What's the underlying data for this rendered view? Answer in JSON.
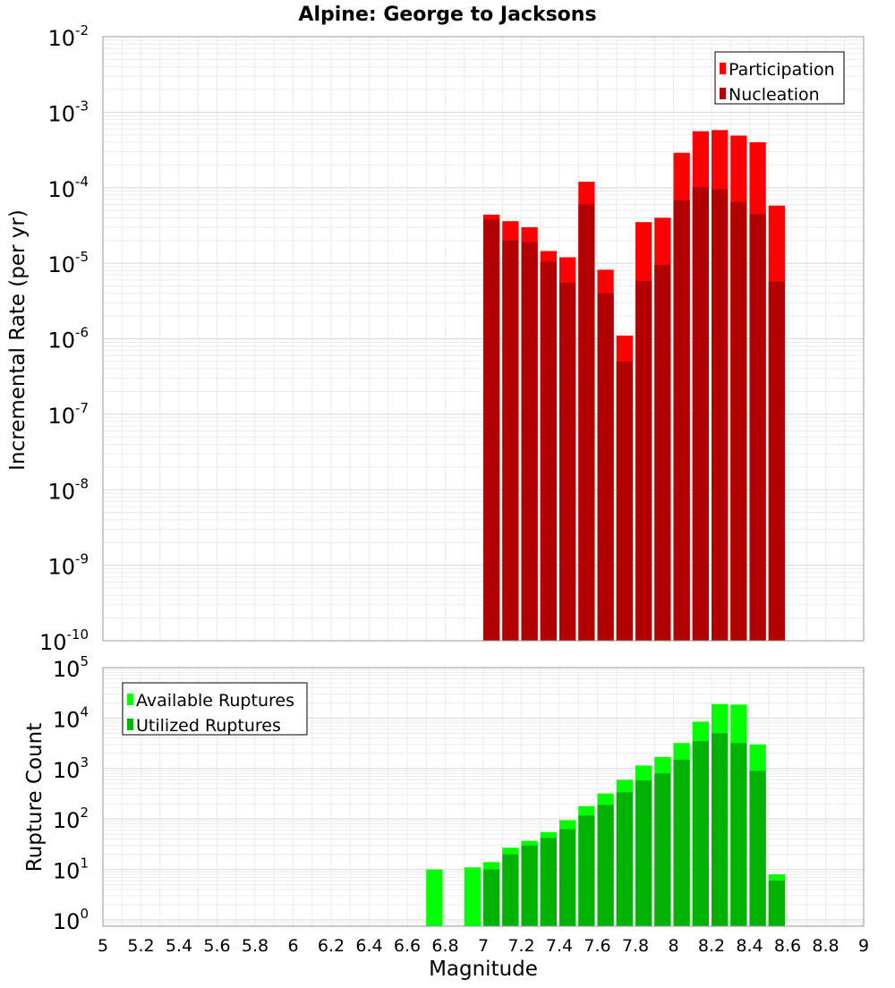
{
  "chart_data": [
    {
      "type": "bar",
      "title": "Alpine: George to Jacksons",
      "ylabel": "Incremental Rate (per yr)",
      "yscale": "log",
      "ylim": [
        1e-10,
        0.01
      ],
      "xlim": [
        5,
        9
      ],
      "bin_width": 0.1,
      "y_tick_exponents": [
        -10,
        -9,
        -8,
        -7,
        -6,
        -5,
        -4,
        -3,
        -2
      ],
      "y_tick_base": "10",
      "legend_position": "top-right",
      "grid": true,
      "overlay": true,
      "series": [
        {
          "name": "Participation",
          "color": "#ff0000",
          "x": [
            7.05,
            7.15,
            7.25,
            7.35,
            7.45,
            7.55,
            7.65,
            7.75,
            7.85,
            7.95,
            8.05,
            8.15,
            8.25,
            8.35,
            8.45,
            8.55
          ],
          "values": [
            4.4e-05,
            3.6e-05,
            3e-05,
            1.45e-05,
            1.2e-05,
            0.00012,
            8.2e-06,
            1.1e-06,
            3.5e-05,
            4e-05,
            0.00029,
            0.00056,
            0.00058,
            0.00049,
            0.0004,
            5.8e-05
          ]
        },
        {
          "name": "Nucleation",
          "color": "#b20000",
          "x": [
            7.05,
            7.15,
            7.25,
            7.35,
            7.45,
            7.55,
            7.65,
            7.75,
            7.85,
            7.95,
            8.05,
            8.15,
            8.25,
            8.35,
            8.45,
            8.55
          ],
          "values": [
            3.8e-05,
            2e-05,
            1.9e-05,
            1.05e-05,
            5.5e-06,
            6e-05,
            4e-06,
            5e-07,
            5.8e-06,
            9.5e-06,
            6.8e-05,
            0.000102,
            9.5e-05,
            6.5e-05,
            4.5e-05,
            5.7e-06
          ]
        }
      ]
    },
    {
      "type": "bar",
      "xlabel": "Magnitude",
      "ylabel": "Rupture Count",
      "yscale": "log",
      "ylim": [
        0.75,
        100000
      ],
      "xlim": [
        5,
        9
      ],
      "bin_width": 0.1,
      "y_tick_exponents": [
        0,
        1,
        2,
        3,
        4,
        5
      ],
      "y_tick_base": "10",
      "x_ticks": [
        "5",
        "5.2",
        "5.4",
        "5.6",
        "5.8",
        "6",
        "6.2",
        "6.4",
        "6.6",
        "6.8",
        "7",
        "7.2",
        "7.4",
        "7.6",
        "7.8",
        "8",
        "8.2",
        "8.4",
        "8.6",
        "8.8",
        "9"
      ],
      "legend_position": "top-left",
      "grid": true,
      "overlay": true,
      "series": [
        {
          "name": "Available Ruptures",
          "color": "#00ff00",
          "x": [
            6.75,
            6.95,
            7.05,
            7.15,
            7.25,
            7.35,
            7.45,
            7.55,
            7.65,
            7.75,
            7.85,
            7.95,
            8.05,
            8.15,
            8.25,
            8.35,
            8.45,
            8.55
          ],
          "values": [
            10,
            11,
            14,
            27,
            37,
            55,
            95,
            180,
            320,
            600,
            1150,
            1700,
            3200,
            8500,
            19000,
            18500,
            3000,
            8
          ]
        },
        {
          "name": "Utilized Ruptures",
          "color": "#00b200",
          "x": [
            7.05,
            7.15,
            7.25,
            7.35,
            7.45,
            7.55,
            7.65,
            7.75,
            7.85,
            7.95,
            8.05,
            8.15,
            8.25,
            8.35,
            8.45,
            8.55
          ],
          "values": [
            10,
            20,
            30,
            42,
            63,
            118,
            190,
            340,
            580,
            800,
            1500,
            3500,
            5000,
            3200,
            900,
            6
          ]
        }
      ]
    }
  ]
}
